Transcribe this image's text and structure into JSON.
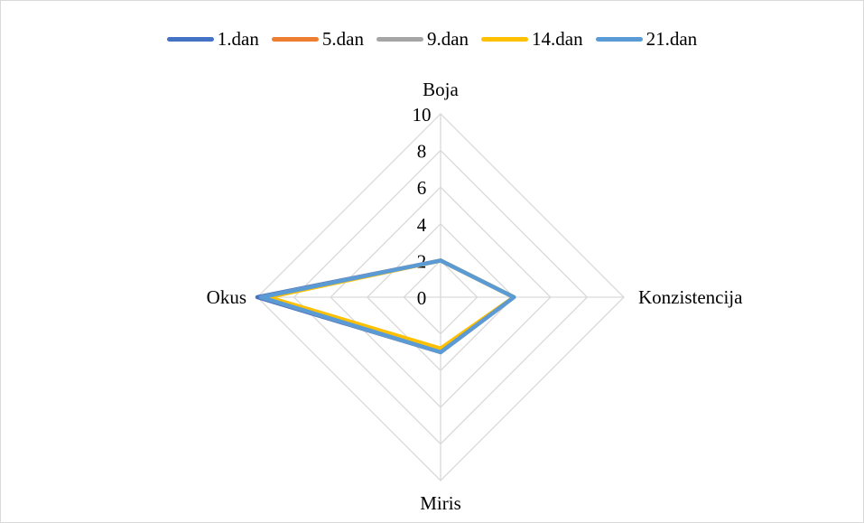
{
  "chart_data": {
    "type": "radar",
    "categories": [
      "Boja",
      "Konzistencija",
      "Miris",
      "Okus"
    ],
    "rlim": [
      0,
      10
    ],
    "ticks": [
      "0",
      "2",
      "4",
      "6",
      "8",
      "10"
    ],
    "tick_values": [
      0,
      2,
      4,
      6,
      8,
      10
    ],
    "legend_position": "top",
    "grid": true,
    "series": [
      {
        "name": "1.dan",
        "color": "#4472c4",
        "values": [
          2.0,
          4.0,
          3.0,
          10.0
        ]
      },
      {
        "name": "5.dan",
        "color": "#ed7d31",
        "values": [
          2.0,
          4.0,
          3.0,
          9.8
        ]
      },
      {
        "name": "9.dan",
        "color": "#a5a5a5",
        "values": [
          2.0,
          4.0,
          3.0,
          9.6
        ]
      },
      {
        "name": "14.dan",
        "color": "#ffc000",
        "values": [
          2.0,
          4.0,
          2.8,
          9.4
        ]
      },
      {
        "name": "21.dan",
        "color": "#5b9bd5",
        "values": [
          2.0,
          4.0,
          3.0,
          9.8
        ]
      }
    ]
  }
}
